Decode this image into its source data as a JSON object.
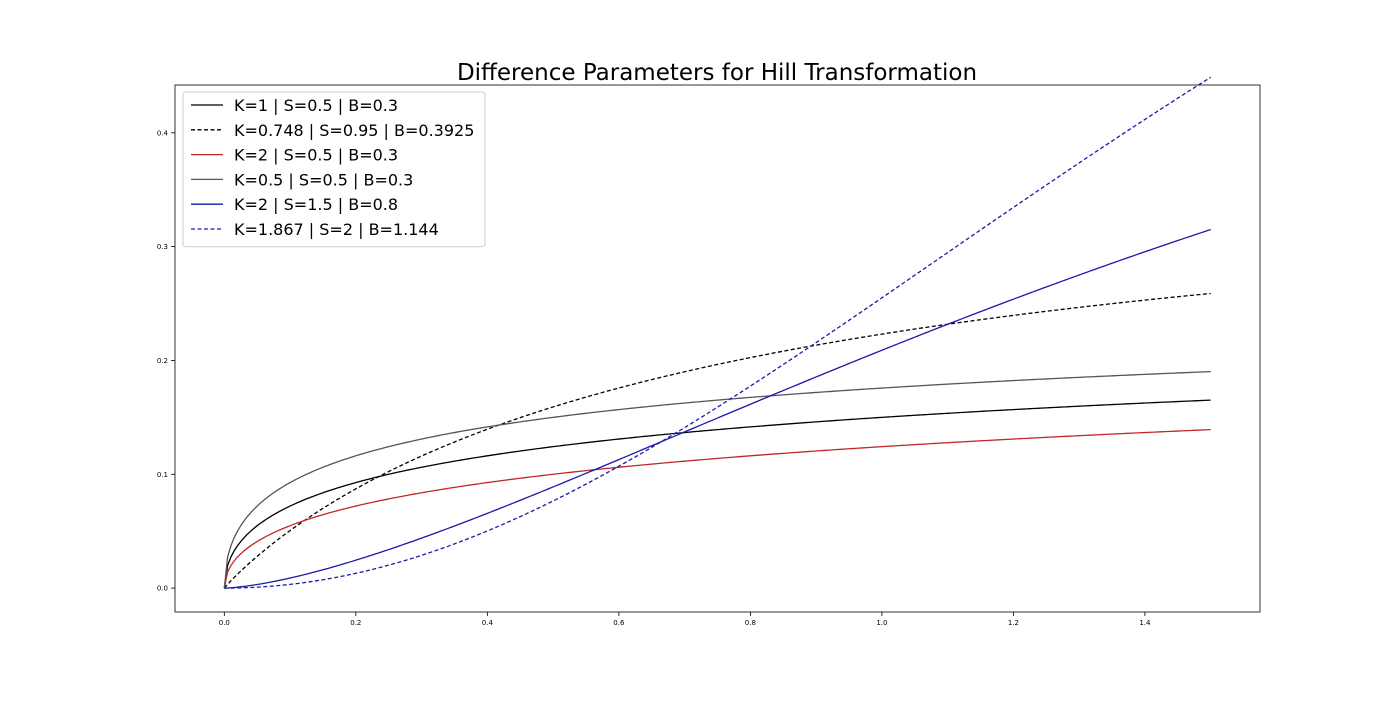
{
  "chart_data": {
    "type": "line",
    "title": "Difference Parameters for Hill Transformation",
    "xlabel": "",
    "ylabel": "",
    "xlim": [
      -0.075,
      1.575
    ],
    "ylim": [
      -0.021,
      0.442
    ],
    "x_ticks": [
      0.0,
      0.2,
      0.4,
      0.6,
      0.8,
      1.0,
      1.2,
      1.4
    ],
    "x_tick_labels": [
      "0.0",
      "0.2",
      "0.4",
      "0.6",
      "0.8",
      "1.0",
      "1.2",
      "1.4"
    ],
    "y_ticks": [
      0.0,
      0.1,
      0.2,
      0.3,
      0.4
    ],
    "y_tick_labels": [
      "0.0",
      "0.1",
      "0.2",
      "0.3",
      "0.4"
    ],
    "grid": false,
    "legend_position": "upper-left",
    "x_range": [
      0,
      1.5
    ],
    "sample_count": 300,
    "series": [
      {
        "name": "K=1 | S=0.5 | B=0.3",
        "K": 1,
        "S": 0.5,
        "B": 0.3,
        "color": "#000000",
        "dash": "solid"
      },
      {
        "name": "K=0.748 | S=0.95 | B=0.3925",
        "K": 0.748,
        "S": 0.95,
        "B": 0.3925,
        "color": "#000000",
        "dash": "dashed"
      },
      {
        "name": "K=2 | S=0.5 | B=0.3",
        "K": 2,
        "S": 0.5,
        "B": 0.3,
        "color": "#c0282a",
        "dash": "solid"
      },
      {
        "name": "K=0.5 | S=0.5 | B=0.3",
        "K": 0.5,
        "S": 0.5,
        "B": 0.3,
        "color": "#555555",
        "dash": "solid"
      },
      {
        "name": "K=2 | S=1.5 | B=0.8",
        "K": 2,
        "S": 1.5,
        "B": 0.8,
        "color": "#1a1aa6",
        "dash": "solid"
      },
      {
        "name": "K=1.867 | S=2 | B=1.144",
        "K": 1.867,
        "S": 2,
        "B": 1.144,
        "color": "#1a1aa6",
        "dash": "dashed"
      }
    ]
  }
}
